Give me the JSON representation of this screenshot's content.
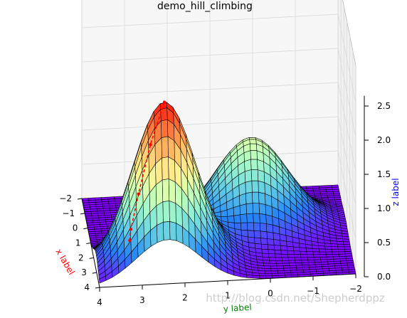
{
  "chart_data": {
    "type": "surface3d",
    "title": "demo_hill_climbing",
    "xlabel": "x label",
    "ylabel": "y label",
    "zlabel": "z label",
    "colors": {
      "xlabel": "#ff0000",
      "ylabel": "#008000",
      "zlabel": "#0000ff",
      "path": "#ff0000",
      "colormap": "rainbow"
    },
    "xlim": [
      -2,
      4
    ],
    "ylim": [
      -2,
      4
    ],
    "zlim": [
      0,
      2.5
    ],
    "x_ticks": [
      "−2",
      "−1",
      "0",
      "1",
      "2",
      "3",
      "4"
    ],
    "y_ticks": [
      "−2",
      "−1",
      "0",
      "1",
      "2",
      "3",
      "4"
    ],
    "z_ticks": [
      "0.0",
      "0.5",
      "1.0",
      "1.5",
      "2.0",
      "2.5"
    ],
    "surface": {
      "expression": "z = 2.4*exp(-((x-2.8)^2+(y-2.4)^2)/1.1) + 1.3*exp(-((x-0.5)^2+(y-0.2)^2)/1.5)",
      "peaks": [
        {
          "x": 2.8,
          "y": 2.4,
          "z": 2.4
        },
        {
          "x": 0.5,
          "y": 0.2,
          "z": 1.3
        }
      ]
    },
    "path_points": [
      {
        "x": 1.2,
        "y": 3.1,
        "z": 0.05
      },
      {
        "x": 1.6,
        "y": 3.1,
        "z": 0.3
      },
      {
        "x": 2.0,
        "y": 2.95,
        "z": 0.9
      },
      {
        "x": 2.4,
        "y": 2.7,
        "z": 1.7
      },
      {
        "x": 2.8,
        "y": 2.4,
        "z": 2.4
      }
    ],
    "grid": true
  },
  "watermark": "http://blog.csdn.net/Shepherdppz"
}
